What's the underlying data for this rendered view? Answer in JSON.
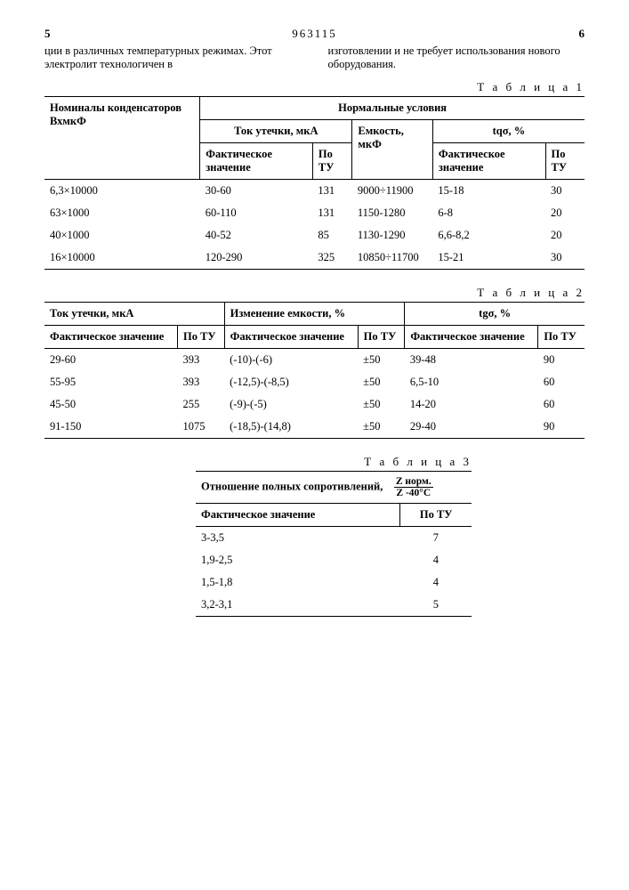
{
  "header": {
    "left_col_num": "5",
    "doc_number": "963115",
    "right_col_num": "6"
  },
  "intro": {
    "left": "ции в различных температурных режимах. Этот электролит технологичен в",
    "right": "изготовлении и не требует использования нового оборудования."
  },
  "table1": {
    "label": "Т а б л и ц а  1",
    "h_nominal": "Номиналы конденсаторов ВхмкФ",
    "h_normal": "Нормальные условия",
    "h_leak": "Ток утечки, мкА",
    "h_cap": "Емкость, мкФ",
    "h_tg": "tqσ, %",
    "h_fact": "Фактическое значение",
    "h_tu": "По ТУ",
    "columns": [
      "nominal",
      "leak_fact",
      "leak_tu",
      "cap",
      "tg_fact",
      "tg_tu"
    ],
    "rows": [
      [
        "6,3×10000",
        "30-60",
        "131",
        "9000÷11900",
        "15-18",
        "30"
      ],
      [
        "63×1000",
        "60-110",
        "131",
        "1150-1280",
        "6-8",
        "20"
      ],
      [
        "40×1000",
        "40-52",
        "85",
        "1130-1290",
        "6,6-8,2",
        "20"
      ],
      [
        "16×10000",
        "120-290",
        "325",
        "10850÷11700",
        "15-21",
        "30"
      ]
    ]
  },
  "table2": {
    "label": "Т а б л и ц а  2",
    "h_leak": "Ток утечки, мкА",
    "h_cap_change": "Изменение емкости, %",
    "h_tg": "tgσ, %",
    "h_fact": "Фактическое значение",
    "h_fact2": "Фактическое значение",
    "h_tu": "По ТУ",
    "rows": [
      [
        "29-60",
        "393",
        "(-10)-(-6)",
        "±50",
        "39-48",
        "90"
      ],
      [
        "55-95",
        "393",
        "(-12,5)-(-8,5)",
        "±50",
        "6,5-10",
        "60"
      ],
      [
        "45-50",
        "255",
        "(-9)-(-5)",
        "±50",
        "14-20",
        "60"
      ],
      [
        "91-150",
        "1075",
        "(-18,5)-(14,8)",
        "±50",
        "29-40",
        "90"
      ]
    ]
  },
  "table3": {
    "label": "Т а б л и ц а  3",
    "h_ratio": "Отношение полных сопротивлений,",
    "frac_num": "Z норм.",
    "frac_den": "Z -40°C",
    "h_fact": "Фактическое значение",
    "h_tu": "По ТУ",
    "rows": [
      [
        "3-3,5",
        "7"
      ],
      [
        "1,9-2,5",
        "4"
      ],
      [
        "1,5-1,8",
        "4"
      ],
      [
        "3,2-3,1",
        "5"
      ]
    ]
  }
}
